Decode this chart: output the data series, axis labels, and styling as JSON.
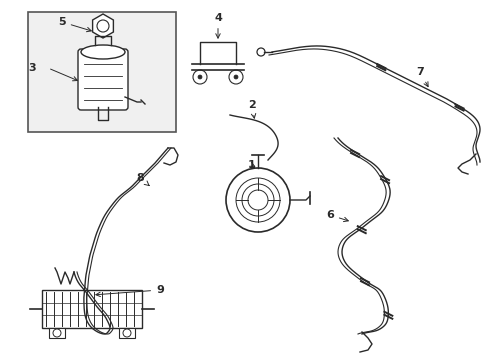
{
  "bg_color": "#ffffff",
  "line_color": "#2a2a2a",
  "box_fill": "#f0f0f0",
  "fig_width": 4.89,
  "fig_height": 3.6,
  "dpi": 100
}
